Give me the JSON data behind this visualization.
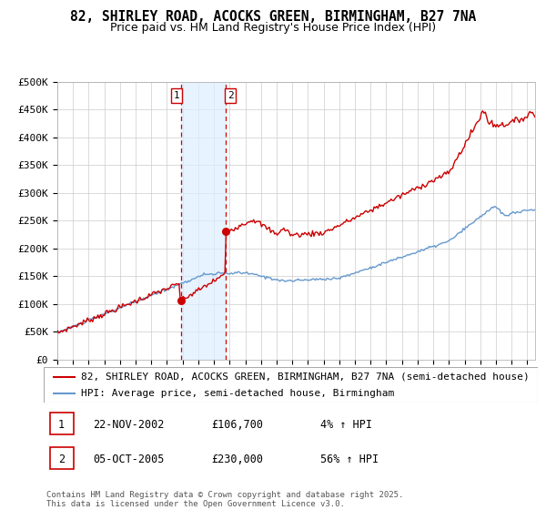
{
  "title": "82, SHIRLEY ROAD, ACOCKS GREEN, BIRMINGHAM, B27 7NA",
  "subtitle": "Price paid vs. HM Land Registry's House Price Index (HPI)",
  "ylim": [
    0,
    500000
  ],
  "yticks": [
    0,
    50000,
    100000,
    150000,
    200000,
    250000,
    300000,
    350000,
    400000,
    450000,
    500000
  ],
  "ytick_labels": [
    "£0",
    "£50K",
    "£100K",
    "£150K",
    "£200K",
    "£250K",
    "£300K",
    "£350K",
    "£400K",
    "£450K",
    "£500K"
  ],
  "red_line_color": "#cc0000",
  "blue_line_color": "#6699cc",
  "background_color": "#ffffff",
  "chart_bg_color": "#ffffff",
  "grid_color": "#cccccc",
  "shade_color": "#ddeeff",
  "purchase1_date_x": 2002.9,
  "purchase1_price": 106700,
  "purchase2_date_x": 2005.75,
  "purchase2_price": 230000,
  "xlim_left": 1995.0,
  "xlim_right": 2025.5,
  "legend_entries": [
    "82, SHIRLEY ROAD, ACOCKS GREEN, BIRMINGHAM, B27 7NA (semi-detached house)",
    "HPI: Average price, semi-detached house, Birmingham"
  ],
  "table_entries": [
    {
      "num": "1",
      "date": "22-NOV-2002",
      "price": "£106,700",
      "hpi": "4% ↑ HPI"
    },
    {
      "num": "2",
      "date": "05-OCT-2005",
      "price": "£230,000",
      "hpi": "56% ↑ HPI"
    }
  ],
  "footnote": "Contains HM Land Registry data © Crown copyright and database right 2025.\nThis data is licensed under the Open Government Licence v3.0.",
  "title_fontsize": 10.5,
  "subtitle_fontsize": 9,
  "tick_fontsize": 8,
  "legend_fontsize": 8,
  "table_fontsize": 8.5,
  "footnote_fontsize": 6.5
}
